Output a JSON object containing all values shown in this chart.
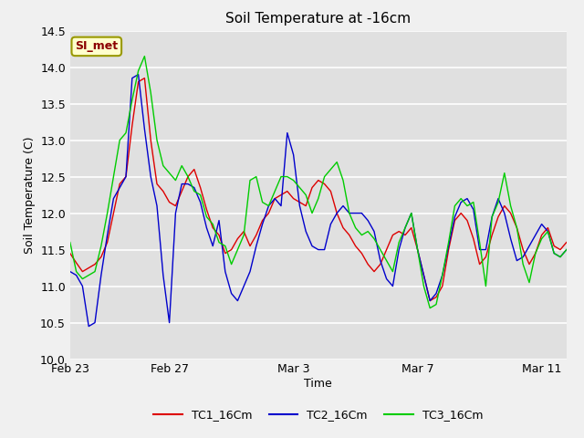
{
  "title": "Soil Temperature at -16cm",
  "xlabel": "Time",
  "ylabel": "Soil Temperature (C)",
  "ylim": [
    10.0,
    14.5
  ],
  "fig_bg_color": "#f0f0f0",
  "plot_bg_color": "#e0e0e0",
  "legend_entries": [
    "TC1_16Cm",
    "TC2_16Cm",
    "TC3_16Cm"
  ],
  "legend_colors": [
    "#dd0000",
    "#0000cc",
    "#00cc00"
  ],
  "watermark_text": "SI_met",
  "tick_labels_x": [
    "Feb 23",
    "Feb 27",
    "Mar 3",
    "Mar 7",
    "Mar 11"
  ],
  "tick_positions_x": [
    0,
    8,
    18,
    28,
    38
  ],
  "xlim": [
    0,
    40
  ],
  "yticks": [
    10.0,
    10.5,
    11.0,
    11.5,
    12.0,
    12.5,
    13.0,
    13.5,
    14.0,
    14.5
  ],
  "series": {
    "TC1_16Cm": {
      "color": "#dd0000",
      "x": [
        0,
        0.5,
        1,
        1.5,
        2,
        2.5,
        3,
        3.5,
        4,
        4.5,
        5,
        5.5,
        6,
        6.5,
        7,
        7.5,
        8,
        8.5,
        9,
        9.5,
        10,
        10.5,
        11,
        11.5,
        12,
        12.5,
        13,
        13.5,
        14,
        14.5,
        15,
        15.5,
        16,
        16.5,
        17,
        17.5,
        18,
        18.5,
        19,
        19.5,
        20,
        20.5,
        21,
        21.5,
        22,
        22.5,
        23,
        23.5,
        24,
        24.5,
        25,
        25.5,
        26,
        26.5,
        27,
        27.5,
        28,
        28.5,
        29,
        29.5,
        30,
        30.5,
        31,
        31.5,
        32,
        32.5,
        33,
        33.5,
        34,
        34.5,
        35,
        35.5,
        36,
        36.5,
        37,
        37.5,
        38,
        38.5,
        39,
        39.5,
        40
      ],
      "y": [
        11.45,
        11.32,
        11.2,
        11.25,
        11.3,
        11.4,
        11.6,
        12.0,
        12.4,
        12.5,
        13.2,
        13.8,
        13.85,
        13.0,
        12.4,
        12.3,
        12.15,
        12.1,
        12.3,
        12.5,
        12.6,
        12.35,
        12.05,
        11.8,
        11.7,
        11.45,
        11.5,
        11.65,
        11.75,
        11.55,
        11.7,
        11.9,
        12.0,
        12.2,
        12.25,
        12.3,
        12.2,
        12.15,
        12.1,
        12.35,
        12.45,
        12.4,
        12.3,
        12.0,
        11.8,
        11.7,
        11.55,
        11.45,
        11.3,
        11.2,
        11.3,
        11.5,
        11.7,
        11.75,
        11.7,
        11.8,
        11.5,
        11.15,
        10.8,
        10.85,
        11.0,
        11.5,
        11.9,
        12.0,
        11.9,
        11.65,
        11.3,
        11.4,
        11.7,
        11.95,
        12.1,
        12.0,
        11.8,
        11.5,
        11.3,
        11.45,
        11.7,
        11.8,
        11.55,
        11.5,
        11.6
      ]
    },
    "TC2_16Cm": {
      "color": "#0000cc",
      "x": [
        0,
        0.5,
        1,
        1.5,
        2,
        2.5,
        3,
        3.5,
        4,
        4.5,
        5,
        5.5,
        6,
        6.5,
        7,
        7.5,
        8,
        8.5,
        9,
        9.5,
        10,
        10.5,
        11,
        11.5,
        12,
        12.5,
        13,
        13.5,
        14,
        14.5,
        15,
        15.5,
        16,
        16.5,
        17,
        17.5,
        18,
        18.5,
        19,
        19.5,
        20,
        20.5,
        21,
        21.5,
        22,
        22.5,
        23,
        23.5,
        24,
        24.5,
        25,
        25.5,
        26,
        26.5,
        27,
        27.5,
        28,
        28.5,
        29,
        29.5,
        30,
        30.5,
        31,
        31.5,
        32,
        32.5,
        33,
        33.5,
        34,
        34.5,
        35,
        35.5,
        36,
        36.5,
        37,
        37.5,
        38,
        38.5,
        39,
        39.5,
        40
      ],
      "y": [
        11.2,
        11.15,
        11.0,
        10.45,
        10.5,
        11.15,
        11.7,
        12.2,
        12.35,
        12.5,
        13.85,
        13.9,
        13.15,
        12.5,
        12.1,
        11.15,
        10.5,
        12.0,
        12.4,
        12.4,
        12.35,
        12.15,
        11.8,
        11.55,
        11.9,
        11.2,
        10.9,
        10.8,
        11.0,
        11.2,
        11.55,
        11.85,
        12.1,
        12.2,
        12.1,
        13.1,
        12.8,
        12.1,
        11.75,
        11.55,
        11.5,
        11.5,
        11.85,
        12.0,
        12.1,
        12.0,
        12.0,
        12.0,
        11.9,
        11.75,
        11.35,
        11.1,
        11.0,
        11.5,
        11.8,
        12.0,
        11.5,
        11.15,
        10.8,
        10.9,
        11.15,
        11.55,
        11.95,
        12.15,
        12.2,
        12.05,
        11.5,
        11.5,
        11.95,
        12.2,
        12.0,
        11.65,
        11.35,
        11.4,
        11.55,
        11.7,
        11.85,
        11.75,
        11.45,
        11.4,
        11.5
      ]
    },
    "TC3_16Cm": {
      "color": "#00cc00",
      "x": [
        0,
        0.5,
        1,
        1.5,
        2,
        2.5,
        3,
        3.5,
        4,
        4.5,
        5,
        5.5,
        6,
        6.5,
        7,
        7.5,
        8,
        8.5,
        9,
        9.5,
        10,
        10.5,
        11,
        11.5,
        12,
        12.5,
        13,
        13.5,
        14,
        14.5,
        15,
        15.5,
        16,
        16.5,
        17,
        17.5,
        18,
        18.5,
        19,
        19.5,
        20,
        20.5,
        21,
        21.5,
        22,
        22.5,
        23,
        23.5,
        24,
        24.5,
        25,
        25.5,
        26,
        26.5,
        27,
        27.5,
        28,
        28.5,
        29,
        29.5,
        30,
        30.5,
        31,
        31.5,
        32,
        32.5,
        33,
        33.5,
        34,
        34.5,
        35,
        35.5,
        36,
        36.5,
        37,
        37.5,
        38,
        38.5,
        39,
        39.5,
        40
      ],
      "y": [
        11.6,
        11.2,
        11.1,
        11.15,
        11.2,
        11.55,
        12.0,
        12.5,
        13.0,
        13.1,
        13.55,
        13.95,
        14.15,
        13.65,
        13.0,
        12.65,
        12.55,
        12.45,
        12.65,
        12.5,
        12.3,
        12.25,
        11.95,
        11.85,
        11.6,
        11.55,
        11.3,
        11.5,
        11.7,
        12.45,
        12.5,
        12.15,
        12.1,
        12.3,
        12.5,
        12.5,
        12.45,
        12.35,
        12.25,
        12.0,
        12.2,
        12.5,
        12.6,
        12.7,
        12.45,
        12.0,
        11.8,
        11.7,
        11.75,
        11.65,
        11.5,
        11.35,
        11.2,
        11.6,
        11.8,
        12.0,
        11.5,
        11.0,
        10.7,
        10.75,
        11.15,
        11.6,
        12.1,
        12.2,
        12.1,
        12.15,
        11.6,
        11.0,
        11.95,
        12.15,
        12.55,
        12.1,
        11.8,
        11.3,
        11.05,
        11.45,
        11.65,
        11.75,
        11.45,
        11.4,
        11.5
      ]
    }
  }
}
